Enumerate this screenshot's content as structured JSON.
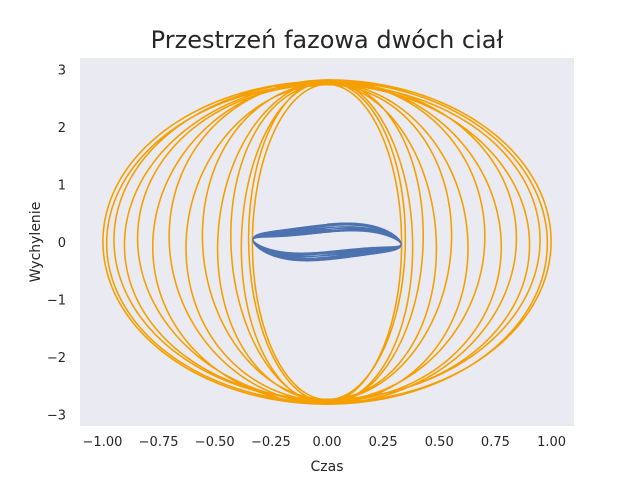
{
  "chart_data": {
    "type": "line",
    "title": "Przestrzeń fazowa dwóch ciał",
    "xlabel": "Czas",
    "ylabel": "Wychylenie",
    "xlim": [
      -1.1,
      1.1
    ],
    "ylim": [
      -3.2,
      3.2
    ],
    "xticks": [
      -1.0,
      -0.75,
      -0.5,
      -0.25,
      0.0,
      0.25,
      0.5,
      0.75,
      1.0
    ],
    "xtick_labels": [
      "−1.00",
      "−0.75",
      "−0.50",
      "−0.25",
      "0.00",
      "0.25",
      "0.50",
      "0.75",
      "1.00"
    ],
    "yticks": [
      -3,
      -2,
      -1,
      0,
      1,
      2,
      3
    ],
    "ytick_labels": [
      "−3",
      "−2",
      "−1",
      "0",
      "1",
      "2",
      "3"
    ],
    "grid": false,
    "background": "#eaeaf2",
    "series": [
      {
        "color": "#f5a000",
        "x_amplitude": 1.0,
        "y_amplitude": 2.82,
        "x_amplitude_min": 0.33,
        "orbit_pinch_y": 2.35
      },
      {
        "color": "#4c72b0",
        "x_amplitude": 0.33,
        "y_amplitude": 0.31,
        "y_amplitude_min": 0.17
      }
    ]
  }
}
